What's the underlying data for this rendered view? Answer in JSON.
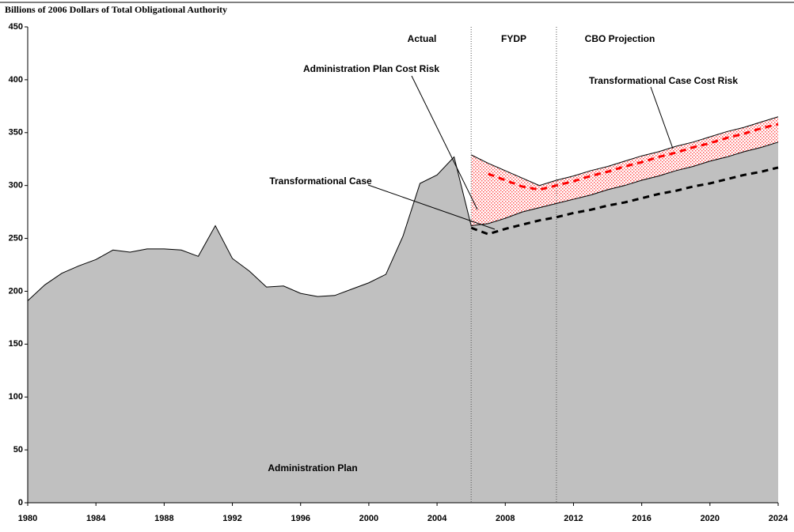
{
  "chart_data": {
    "type": "area",
    "title": "Billions of 2006 Dollars of Total Obligational Authority",
    "annotations": [
      "Actual",
      "FYDP",
      "CBO Projection"
    ],
    "x": [
      1980,
      1981,
      1982,
      1983,
      1984,
      1985,
      1986,
      1987,
      1988,
      1989,
      1990,
      1991,
      1992,
      1993,
      1994,
      1995,
      1996,
      1997,
      1998,
      1999,
      2000,
      2001,
      2002,
      2003,
      2004,
      2005,
      2006,
      2007,
      2008,
      2009,
      2010,
      2011,
      2012,
      2013,
      2014,
      2015,
      2016,
      2017,
      2018,
      2019,
      2020,
      2021,
      2022,
      2023,
      2024
    ],
    "series": [
      {
        "name": "Administration Plan",
        "color": "#c0c0c0",
        "values": [
          191,
          206,
          217,
          224,
          230,
          239,
          237,
          240,
          240,
          239,
          233,
          262,
          231,
          219,
          204,
          205,
          198,
          195,
          196,
          202,
          208,
          216,
          252,
          302,
          310,
          327,
          262,
          264,
          269,
          275,
          279,
          283,
          287,
          291,
          296,
          300,
          305,
          309,
          314,
          318,
          323,
          327,
          332,
          336,
          341
        ]
      },
      {
        "name": "Administration Plan Cost Risk",
        "color": "#ff0000",
        "values": [
          null,
          null,
          null,
          null,
          null,
          null,
          null,
          null,
          null,
          null,
          null,
          null,
          null,
          null,
          null,
          null,
          null,
          null,
          null,
          null,
          null,
          null,
          null,
          null,
          null,
          null,
          329,
          321,
          314,
          307,
          300,
          305,
          309,
          314,
          318,
          323,
          328,
          332,
          337,
          341,
          346,
          351,
          355,
          360,
          365
        ]
      },
      {
        "name": "Transformational Case",
        "color": "#000000",
        "values": [
          null,
          null,
          null,
          null,
          null,
          null,
          null,
          null,
          null,
          null,
          null,
          null,
          null,
          null,
          null,
          null,
          null,
          null,
          null,
          null,
          null,
          null,
          null,
          null,
          null,
          null,
          260,
          254,
          259,
          263,
          267,
          270,
          274,
          277,
          281,
          284,
          288,
          292,
          295,
          299,
          302,
          306,
          310,
          313,
          317
        ]
      },
      {
        "name": "Transformational Case Cost Risk",
        "color": "#ff0000",
        "values": [
          null,
          null,
          null,
          null,
          null,
          null,
          null,
          null,
          null,
          null,
          null,
          null,
          null,
          null,
          null,
          null,
          null,
          null,
          null,
          null,
          null,
          null,
          null,
          null,
          null,
          null,
          null,
          311,
          305,
          299,
          296,
          300,
          304,
          309,
          313,
          318,
          322,
          327,
          331,
          336,
          340,
          345,
          349,
          354,
          358
        ]
      }
    ],
    "xlim": [
      1980,
      2024
    ],
    "xticks": [
      1980,
      1984,
      1988,
      1992,
      1996,
      2000,
      2004,
      2008,
      2012,
      2016,
      2020,
      2024
    ],
    "ylim": [
      0,
      450
    ],
    "yticks": [
      0,
      50,
      100,
      150,
      200,
      250,
      300,
      350,
      400,
      450
    ],
    "dividers": [
      2006,
      2011
    ]
  }
}
